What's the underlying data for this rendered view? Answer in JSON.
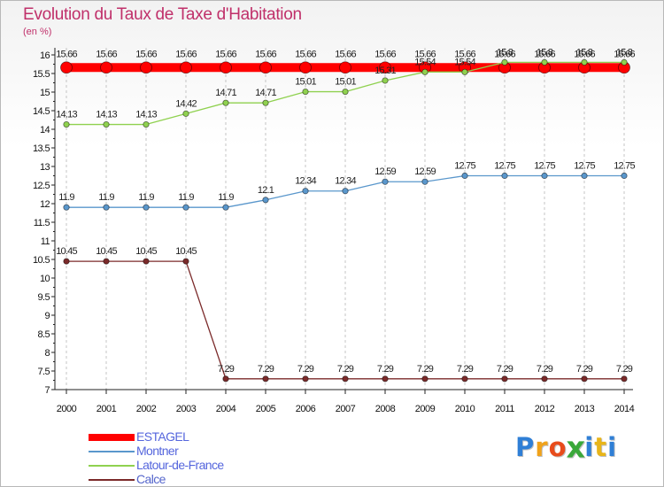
{
  "header": {
    "title": "Evolution du Taux de Taxe d'Habitation",
    "subtitle": "(en %)"
  },
  "chart_data": {
    "type": "line",
    "title": "Evolution du Taux de Taxe d'Habitation",
    "ylabel": "(en %)",
    "xlabel": "",
    "x": [
      "2000",
      "2001",
      "2002",
      "2003",
      "2004",
      "2005",
      "2006",
      "2007",
      "2008",
      "2009",
      "2010",
      "2011",
      "2012",
      "2013",
      "2014"
    ],
    "y_ticks": [
      "7",
      "7.5",
      "8",
      "8.5",
      "9",
      "9.5",
      "10",
      "10.5",
      "11",
      "11.5",
      "12",
      "12.5",
      "13",
      "13.5",
      "14",
      "14.5",
      "15",
      "15.5",
      "16"
    ],
    "ylim": [
      7,
      16
    ],
    "grid": "vertical dashed",
    "legend_position": "bottom-left",
    "series": [
      {
        "name": "ESTAGEL",
        "color": "#ff0000",
        "values": [
          15.66,
          15.66,
          15.66,
          15.66,
          15.66,
          15.66,
          15.66,
          15.66,
          15.66,
          15.66,
          15.66,
          15.66,
          15.66,
          15.66,
          15.66
        ],
        "labels": [
          "15.66",
          "15.66",
          "15.66",
          "15.66",
          "15.66",
          "15.66",
          "15.66",
          "15.66",
          "15.66",
          "15.66",
          "15.66",
          "15.66",
          "15.66",
          "15.66",
          "15.66"
        ]
      },
      {
        "name": "Montner",
        "color": "#5a97cc",
        "values": [
          11.9,
          11.9,
          11.9,
          11.9,
          11.9,
          12.1,
          12.34,
          12.34,
          12.59,
          12.59,
          12.75,
          12.75,
          12.75,
          12.75,
          12.75
        ],
        "labels": [
          "11.9",
          "11.9",
          "11.9",
          "11.9",
          "11.9",
          "12.1",
          "12.34",
          "12.34",
          "12.59",
          "12.59",
          "12.75",
          "12.75",
          "12.75",
          "12.75",
          "12.75"
        ]
      },
      {
        "name": "Latour-de-France",
        "color": "#8fd14f",
        "values": [
          14.13,
          14.13,
          14.13,
          14.42,
          14.71,
          14.71,
          15.01,
          15.01,
          15.31,
          15.54,
          15.54,
          15.8,
          15.8,
          15.8,
          15.8
        ],
        "labels": [
          "14.13",
          "14.13",
          "14.13",
          "14.42",
          "14.71",
          "14.71",
          "15.01",
          "15.01",
          "15.31",
          "15.54",
          "15.54",
          "15.8",
          "15.8",
          "15.8",
          "15.8"
        ]
      },
      {
        "name": "Calce",
        "color": "#7b2a2a",
        "values": [
          10.45,
          10.45,
          10.45,
          10.45,
          7.29,
          7.29,
          7.29,
          7.29,
          7.29,
          7.29,
          7.29,
          7.29,
          7.29,
          7.29,
          7.29
        ],
        "labels": [
          "10.45",
          "10.45",
          "10.45",
          "10.45",
          "7.29",
          "7.29",
          "7.29",
          "7.29",
          "7.29",
          "7.29",
          "7.29",
          "7.29",
          "7.29",
          "7.29",
          "7.29"
        ]
      }
    ]
  },
  "logo": {
    "letters": [
      "P",
      "r",
      "o",
      "x",
      "i",
      "t",
      "i"
    ],
    "colors": [
      "#2f7fd6",
      "#f0a21a",
      "#e84c1c",
      "#3aa83a",
      "#2f7fd6",
      "#e8b51a",
      "#2f7fd6"
    ]
  }
}
